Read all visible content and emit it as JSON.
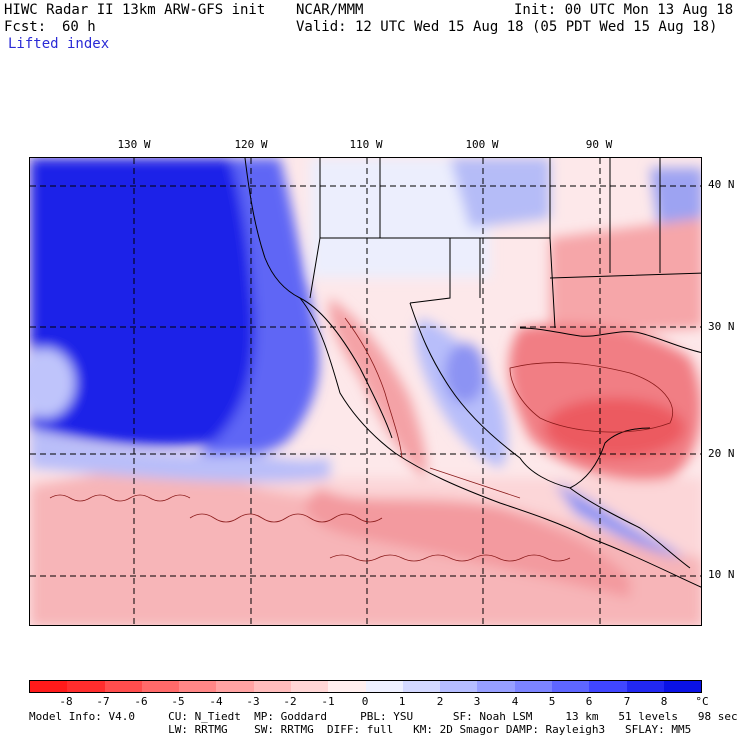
{
  "header": {
    "model": "HIWC Radar II 13km ARW-GFS init",
    "org": "NCAR/MMM",
    "init": "Init: 00 UTC Mon 13 Aug 18",
    "fcst_label": "Fcst:",
    "fcst_value": "60 h",
    "valid": "Valid: 12 UTC Wed 15 Aug 18 (05 PDT Wed 15 Aug 18)",
    "field": "Lifted index"
  },
  "axes": {
    "lon_labels": [
      "130 W",
      "120 W",
      "110 W",
      "100 W",
      "90 W"
    ],
    "lat_labels": [
      "40 N",
      "30 N",
      "20 N",
      "10 N"
    ]
  },
  "colorbar": {
    "colors": [
      "#ff1a1a",
      "#ff2d2d",
      "#ff4d4d",
      "#ff6a6a",
      "#ff8787",
      "#ffa3a3",
      "#ffbdbd",
      "#ffd6d6",
      "#ffefef",
      "#eef0ff",
      "#d3d8ff",
      "#b5bdff",
      "#979fff",
      "#7c84ff",
      "#5e66ff",
      "#4046ff",
      "#2228f2",
      "#0a12e6"
    ],
    "labels": [
      "-8",
      "-7",
      "-6",
      "-5",
      "-4",
      "-3",
      "-2",
      "-1",
      "0",
      "1",
      "2",
      "3",
      "4",
      "5",
      "6",
      "7",
      "8"
    ],
    "unit": "°C"
  },
  "info": {
    "line1": "Model Info: V4.0     CU: N_Tiedt  MP: Goddard     PBL: YSU      SF: Noah LSM     13 km   51 levels   98 sec",
    "line2": "                     LW: RRTMG    SW: RRTMG  DIFF: full   KM: 2D Smagor DAMP: Rayleigh3   SFLAY: MM5"
  }
}
